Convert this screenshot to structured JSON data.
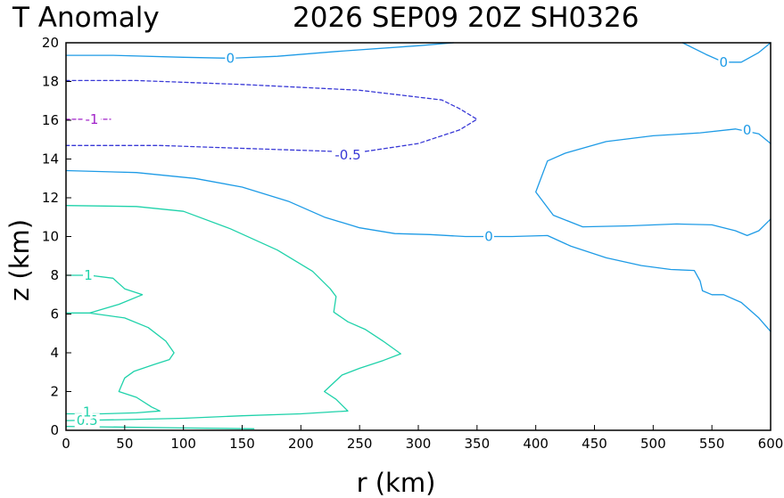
{
  "chart_data": {
    "type": "contour",
    "title_left": "T Anomaly",
    "title_right": "2026 SEP09 20Z SH0326",
    "xlabel": "r (km)",
    "ylabel": "z (km)",
    "xlim": [
      0,
      600
    ],
    "ylim": [
      0,
      20
    ],
    "xticks": [
      "0",
      "50",
      "100",
      "150",
      "200",
      "250",
      "300",
      "350",
      "400",
      "450",
      "500",
      "550",
      "600"
    ],
    "yticks": [
      "0",
      "2",
      "4",
      "6",
      "8",
      "10",
      "12",
      "14",
      "16",
      "18",
      "20"
    ],
    "grid": false,
    "colors": {
      "zero": "#1e9be6",
      "positive": "#1fd2aa",
      "neg_half": "#3838d6",
      "neg_one": "#a020c8"
    },
    "contours": [
      {
        "level": "0",
        "color_key": "zero",
        "dashed": false,
        "points": [
          [
            0,
            19.35
          ],
          [
            40,
            19.35
          ],
          [
            100,
            19.25
          ],
          [
            140,
            19.2
          ],
          [
            180,
            19.3
          ],
          [
            230,
            19.55
          ],
          [
            300,
            19.85
          ],
          [
            330,
            20
          ]
        ],
        "label": {
          "text": "0",
          "at": [
            140,
            19.2
          ]
        }
      },
      {
        "level": "0",
        "color_key": "zero",
        "dashed": false,
        "points": [
          [
            525,
            20
          ],
          [
            545,
            19.4
          ],
          [
            560,
            19
          ],
          [
            575,
            19
          ],
          [
            590,
            19.5
          ],
          [
            600,
            20
          ]
        ],
        "label": {
          "text": "0",
          "at": [
            560,
            19.0
          ]
        }
      },
      {
        "level": "-0.5",
        "color_key": "neg_half",
        "dashed": true,
        "points": [
          [
            0,
            18.05
          ],
          [
            60,
            18.05
          ],
          [
            150,
            17.85
          ],
          [
            250,
            17.55
          ],
          [
            320,
            17.05
          ],
          [
            335,
            16.6
          ],
          [
            350,
            16.05
          ],
          [
            335,
            15.5
          ],
          [
            300,
            14.8
          ],
          [
            250,
            14.35
          ],
          [
            200,
            14.45
          ],
          [
            150,
            14.55
          ],
          [
            80,
            14.7
          ],
          [
            0,
            14.7
          ]
        ],
        "label": {
          "text": "-0.5",
          "at": [
            240,
            14.2
          ]
        }
      },
      {
        "level": "-1",
        "color_key": "neg_one",
        "dashed": true,
        "points": [
          [
            0,
            16.05
          ],
          [
            38,
            16.05
          ]
        ],
        "label": {
          "text": "-1",
          "at": [
            22,
            16.05
          ]
        }
      },
      {
        "level": "0",
        "color_key": "zero",
        "dashed": false,
        "points": [
          [
            0,
            13.4
          ],
          [
            60,
            13.3
          ],
          [
            110,
            13.0
          ],
          [
            150,
            12.55
          ],
          [
            190,
            11.8
          ],
          [
            220,
            11.0
          ],
          [
            250,
            10.45
          ],
          [
            280,
            10.15
          ],
          [
            310,
            10.1
          ],
          [
            340,
            10.0
          ],
          [
            380,
            10.0
          ],
          [
            410,
            10.05
          ],
          [
            430,
            9.5
          ],
          [
            460,
            8.9
          ],
          [
            490,
            8.5
          ],
          [
            515,
            8.3
          ],
          [
            535,
            8.25
          ],
          [
            540,
            7.7
          ],
          [
            542,
            7.2
          ],
          [
            550,
            7.0
          ],
          [
            560,
            7.0
          ],
          [
            575,
            6.6
          ],
          [
            590,
            5.8
          ],
          [
            600,
            5.1
          ]
        ],
        "label": {
          "text": "0",
          "at": [
            360,
            10.0
          ]
        }
      },
      {
        "level": "0",
        "color_key": "zero",
        "dashed": false,
        "points": [
          [
            600,
            10.9
          ],
          [
            590,
            10.3
          ],
          [
            580,
            10.05
          ],
          [
            570,
            10.3
          ],
          [
            550,
            10.6
          ],
          [
            520,
            10.65
          ],
          [
            480,
            10.55
          ],
          [
            440,
            10.5
          ],
          [
            415,
            11.1
          ],
          [
            400,
            12.3
          ],
          [
            410,
            13.9
          ],
          [
            425,
            14.3
          ],
          [
            460,
            14.9
          ],
          [
            500,
            15.2
          ],
          [
            540,
            15.35
          ],
          [
            570,
            15.55
          ],
          [
            590,
            15.3
          ],
          [
            600,
            14.8
          ]
        ],
        "label": {
          "text": "0",
          "at": [
            580,
            15.5
          ]
        }
      },
      {
        "level": "0.5",
        "color_key": "positive",
        "dashed": false,
        "points": [
          [
            0,
            11.6
          ],
          [
            60,
            11.55
          ],
          [
            100,
            11.3
          ],
          [
            140,
            10.4
          ],
          [
            180,
            9.3
          ],
          [
            210,
            8.2
          ],
          [
            225,
            7.3
          ],
          [
            230,
            6.9
          ],
          [
            228,
            6.1
          ],
          [
            240,
            5.6
          ],
          [
            255,
            5.2
          ],
          [
            270,
            4.6
          ],
          [
            285,
            3.95
          ],
          [
            270,
            3.6
          ],
          [
            250,
            3.2
          ],
          [
            235,
            2.85
          ],
          [
            220,
            2.0
          ],
          [
            230,
            1.6
          ],
          [
            240,
            1.0
          ],
          [
            200,
            0.85
          ],
          [
            150,
            0.75
          ],
          [
            100,
            0.62
          ],
          [
            50,
            0.55
          ],
          [
            0,
            0.5
          ]
        ],
        "label": {
          "text": "0.5",
          "at": [
            18,
            0.5
          ]
        }
      },
      {
        "level": "1",
        "color_key": "positive",
        "dashed": false,
        "points": [
          [
            0,
            8.0
          ],
          [
            20,
            8.0
          ],
          [
            40,
            7.85
          ],
          [
            50,
            7.3
          ],
          [
            65,
            7.0
          ],
          [
            45,
            6.5
          ],
          [
            20,
            6.05
          ],
          [
            0,
            6.05
          ]
        ],
        "label": {
          "text": "1",
          "at": [
            19,
            8.0
          ]
        }
      },
      {
        "level": "1",
        "color_key": "positive",
        "dashed": false,
        "points": [
          [
            0,
            6.05
          ],
          [
            20,
            6.05
          ],
          [
            50,
            5.8
          ],
          [
            70,
            5.3
          ],
          [
            85,
            4.6
          ],
          [
            92,
            4.0
          ],
          [
            88,
            3.65
          ],
          [
            75,
            3.4
          ],
          [
            58,
            3.05
          ],
          [
            50,
            2.7
          ],
          [
            45,
            2.0
          ],
          [
            60,
            1.7
          ],
          [
            73,
            1.2
          ],
          [
            80,
            1.0
          ],
          [
            60,
            0.9
          ],
          [
            30,
            0.85
          ],
          [
            0,
            0.85
          ]
        ],
        "label": {
          "text": "1",
          "at": [
            18,
            0.95
          ]
        }
      },
      {
        "level": "1.5",
        "color_key": "positive",
        "dashed": false,
        "points": [
          [
            0,
            0.2
          ],
          [
            100,
            0.12
          ],
          [
            160,
            0.08
          ]
        ],
        "label": null
      }
    ]
  }
}
